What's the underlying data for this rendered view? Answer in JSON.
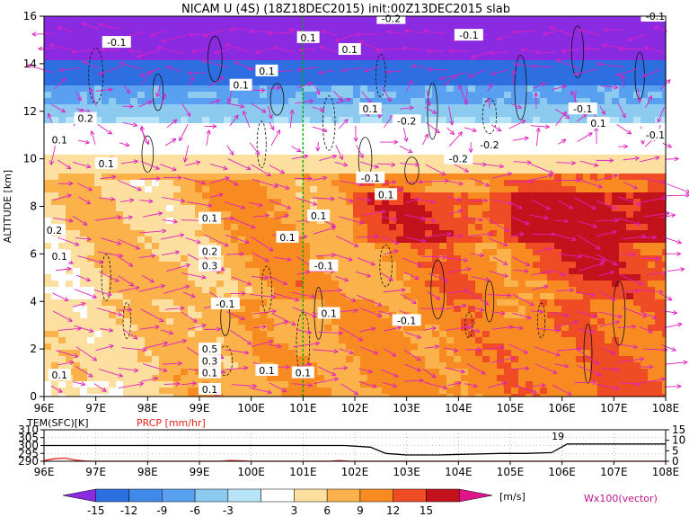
{
  "title": "NICAM U (4S) (18Z18DEC2015) init:00Z13DEC2015 slab",
  "colors": {
    "purple": "#8a2be2",
    "blue": "#2d6fe0",
    "lightblue": "#5aa0f0",
    "paleblue": "#8ccaf0",
    "paleblue2": "#b8e4f8",
    "white": "#ffffff",
    "paleyellow": "#fde0a0",
    "lightorange": "#fbb24a",
    "orange": "#f78b22",
    "red": "#ef4b24",
    "darkred": "#c3121c",
    "magenta": "#e0148c",
    "vector": "#e020c0",
    "green": "#00aa00"
  },
  "chart_data": [
    {
      "type": "heatmap",
      "variable": "U",
      "xlabel": "",
      "ylabel": "ALTITUDE [km]",
      "x_ticks": [
        "96E",
        "97E",
        "98E",
        "99E",
        "100E",
        "101E",
        "102E",
        "103E",
        "104E",
        "105E",
        "106E",
        "107E",
        "108E"
      ],
      "y_ticks": [
        "0",
        "2",
        "4",
        "6",
        "8",
        "10",
        "12",
        "14",
        "16"
      ],
      "xlim": [
        96,
        108
      ],
      "ylim": [
        0,
        16
      ],
      "marker_lon": 101,
      "approx_layers": [
        {
          "from_km": 14,
          "to_km": 16,
          "u": -15
        },
        {
          "from_km": 13,
          "to_km": 14,
          "u": -9
        },
        {
          "from_km": 12,
          "to_km": 13,
          "u": -6
        },
        {
          "from_km": 11,
          "to_km": 12,
          "u": -3
        },
        {
          "from_km": 10,
          "to_km": 11,
          "u": 0
        },
        {
          "from_km": 9,
          "to_km": 10,
          "u": 3
        },
        {
          "from_km": 0,
          "to_km": 9,
          "u": 9
        }
      ],
      "contour_labels": [
        {
          "lon": 97.4,
          "alt": 14.9,
          "text": "-0.1"
        },
        {
          "lon": 99.8,
          "alt": 13.1,
          "text": "0.1"
        },
        {
          "lon": 101.1,
          "alt": 15.1,
          "text": "0.1"
        },
        {
          "lon": 100.3,
          "alt": 13.7,
          "text": "0.1"
        },
        {
          "lon": 101.9,
          "alt": 14.6,
          "text": "0.1"
        },
        {
          "lon": 102.7,
          "alt": 15.9,
          "text": "-0.2"
        },
        {
          "lon": 104.2,
          "alt": 15.2,
          "text": "-0.1"
        },
        {
          "lon": 106.4,
          "alt": 12.1,
          "text": "-0.1"
        },
        {
          "lon": 106.7,
          "alt": 11.5,
          "text": "0.1"
        },
        {
          "lon": 103.0,
          "alt": 11.6,
          "text": "-0.2"
        },
        {
          "lon": 102.3,
          "alt": 12.1,
          "text": "0.1"
        },
        {
          "lon": 107.8,
          "alt": 11.0,
          "text": "-0.1"
        },
        {
          "lon": 107.8,
          "alt": 16.0,
          "text": "-0.1"
        },
        {
          "lon": 104.0,
          "alt": 10.0,
          "text": "-0.2"
        },
        {
          "lon": 104.6,
          "alt": 10.6,
          "text": "-0.2"
        },
        {
          "lon": 96.8,
          "alt": 11.7,
          "text": "0.2"
        },
        {
          "lon": 96.3,
          "alt": 10.8,
          "text": "0.1"
        },
        {
          "lon": 97.2,
          "alt": 9.8,
          "text": "0.1"
        },
        {
          "lon": 102.3,
          "alt": 9.2,
          "text": "-0.1"
        },
        {
          "lon": 102.6,
          "alt": 8.5,
          "text": "0.1"
        },
        {
          "lon": 101.3,
          "alt": 7.6,
          "text": "0.1"
        },
        {
          "lon": 100.7,
          "alt": 6.7,
          "text": "0.1"
        },
        {
          "lon": 99.2,
          "alt": 7.5,
          "text": "0.1"
        },
        {
          "lon": 99.2,
          "alt": 6.1,
          "text": "0.2"
        },
        {
          "lon": 99.2,
          "alt": 5.5,
          "text": "0.3"
        },
        {
          "lon": 101.4,
          "alt": 5.5,
          "text": "-0.1"
        },
        {
          "lon": 96.2,
          "alt": 7.0,
          "text": "0.2"
        },
        {
          "lon": 96.3,
          "alt": 5.9,
          "text": "0.1"
        },
        {
          "lon": 99.5,
          "alt": 3.9,
          "text": "-0.1"
        },
        {
          "lon": 101.5,
          "alt": 3.5,
          "text": "0.1"
        },
        {
          "lon": 103.0,
          "alt": 3.2,
          "text": "-0.1"
        },
        {
          "lon": 99.2,
          "alt": 2.0,
          "text": "0.5"
        },
        {
          "lon": 99.2,
          "alt": 1.5,
          "text": "0.3"
        },
        {
          "lon": 99.2,
          "alt": 1.0,
          "text": "0.1"
        },
        {
          "lon": 99.2,
          "alt": 0.3,
          "text": "0.1"
        },
        {
          "lon": 100.3,
          "alt": 1.1,
          "text": "0.1"
        },
        {
          "lon": 101.0,
          "alt": 1.0,
          "text": "0.1"
        },
        {
          "lon": 96.3,
          "alt": 0.9,
          "text": "0.1"
        }
      ]
    },
    {
      "type": "line",
      "xlim": [
        96,
        108
      ],
      "left_axis_label": "TEM(SFC)[K]",
      "right_axis_label": "PRCP [mm/hr]",
      "left_ticks": [
        "310",
        "305",
        "300",
        "295",
        "290"
      ],
      "right_ticks": [
        "15",
        "10",
        "5",
        "0"
      ],
      "ylim_left": [
        290,
        310
      ],
      "ylim_right": [
        0,
        15
      ],
      "annotation": "19",
      "series": [
        {
          "name": "TEM(SFC)[K]",
          "x": [
            96,
            97,
            98,
            99,
            100,
            101,
            101.8,
            102.3,
            102.6,
            103,
            103.6,
            104.2,
            104.8,
            105.3,
            105.8,
            106.1,
            107,
            108
          ],
          "values": [
            300,
            300,
            300,
            300,
            300,
            300,
            300,
            299,
            295,
            294,
            294,
            294.5,
            295,
            295,
            295.5,
            301,
            301,
            301
          ]
        },
        {
          "name": "PRCP [mm/hr]",
          "x": [
            96,
            96.2,
            96.4,
            96.6,
            96.8,
            97,
            99.4,
            99.6,
            99.8,
            100,
            101.5,
            101.7,
            101.9,
            108
          ],
          "values": [
            0.3,
            1.2,
            1.5,
            0.6,
            0.1,
            0,
            0,
            0.4,
            0.2,
            0,
            0,
            0.3,
            0,
            0
          ]
        }
      ]
    }
  ],
  "colorbar": {
    "ticks": [
      "-15",
      "-12",
      "-9",
      "-6",
      "-3",
      "3",
      "6",
      "9",
      "12",
      "15"
    ],
    "unit": "[m/s]",
    "colors": [
      "#8a2be2",
      "#2d6fe0",
      "#3f8ae8",
      "#5aa0f0",
      "#8ccaf0",
      "#b8e4f8",
      "#ffffff",
      "#fde0a0",
      "#fbb24a",
      "#f78b22",
      "#ef4b24",
      "#c3121c",
      "#e0148c"
    ]
  },
  "vector_legend": "Wx100(vector)"
}
